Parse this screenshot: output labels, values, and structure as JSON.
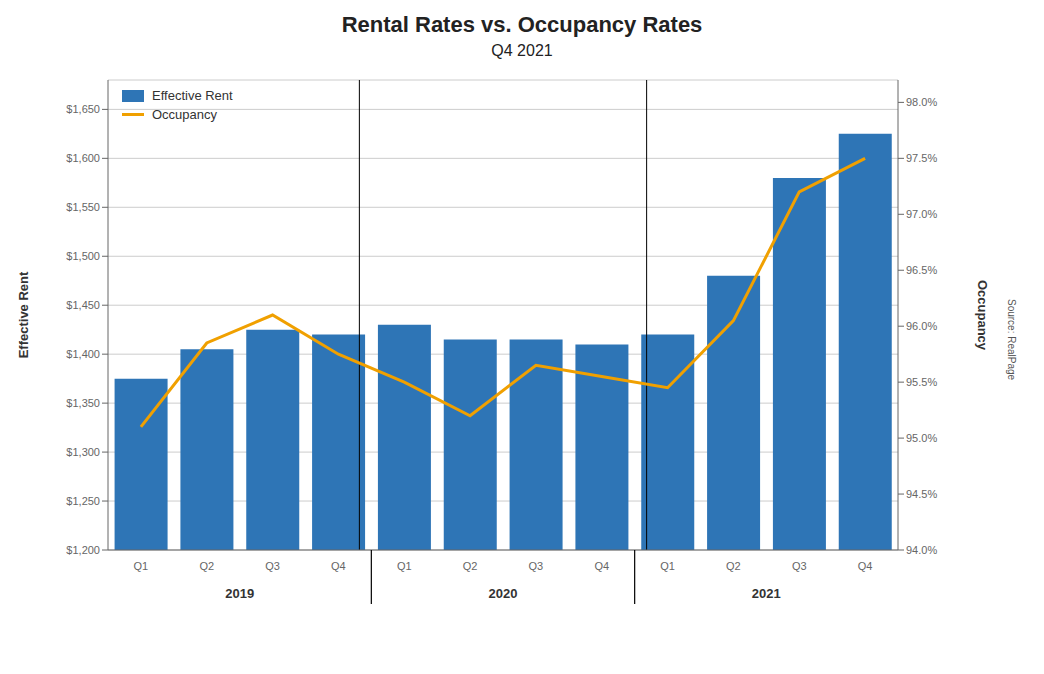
{
  "chart_data": {
    "type": "bar",
    "title": "Rental Rates vs. Occupancy Rates",
    "subtitle": "Q4 2021",
    "categories": [
      "Q1",
      "Q2",
      "Q3",
      "Q4",
      "Q1",
      "Q2",
      "Q3",
      "Q4",
      "Q1",
      "Q2",
      "Q3",
      "Q4"
    ],
    "group_labels": [
      "2019",
      "2020",
      "2021"
    ],
    "series": [
      {
        "name": "Effective Rent",
        "type": "bar",
        "color": "#2e75b6",
        "values": [
          1375,
          1405,
          1425,
          1420,
          1430,
          1415,
          1415,
          1410,
          1420,
          1480,
          1580,
          1625
        ]
      },
      {
        "name": "Occupancy",
        "type": "line",
        "color": "#f0a000",
        "axis": "y2",
        "values": [
          95.1,
          95.85,
          96.1,
          95.75,
          95.5,
          95.2,
          95.65,
          95.55,
          95.45,
          96.05,
          97.2,
          97.5
        ]
      }
    ],
    "ylabel": "Effective Rent",
    "y2label": "Occupancy",
    "ylim": [
      1200,
      1680
    ],
    "yticks": [
      {
        "value": 1200,
        "label": "$1,200"
      },
      {
        "value": 1250,
        "label": "$1,250"
      },
      {
        "value": 1300,
        "label": "$1,300"
      },
      {
        "value": 1350,
        "label": "$1,350"
      },
      {
        "value": 1400,
        "label": "$1,400"
      },
      {
        "value": 1450,
        "label": "$1,450"
      },
      {
        "value": 1500,
        "label": "$1,500"
      },
      {
        "value": 1550,
        "label": "$1,550"
      },
      {
        "value": 1600,
        "label": "$1,600"
      },
      {
        "value": 1650,
        "label": "$1,650"
      }
    ],
    "y2lim": [
      94.0,
      98.2
    ],
    "y2ticks": [
      {
        "value": 94.0,
        "label": "94.0%"
      },
      {
        "value": 94.5,
        "label": "94.5%"
      },
      {
        "value": 95.0,
        "label": "95.0%"
      },
      {
        "value": 95.5,
        "label": "95.5%"
      },
      {
        "value": 96.0,
        "label": "96.0%"
      },
      {
        "value": 96.5,
        "label": "96.5%"
      },
      {
        "value": 97.0,
        "label": "97.0%"
      },
      {
        "value": 97.5,
        "label": "97.5%"
      },
      {
        "value": 98.0,
        "label": "98.0%"
      }
    ],
    "grid": true,
    "legend": "upper left",
    "annotations": [
      "Source: RealPage"
    ]
  }
}
